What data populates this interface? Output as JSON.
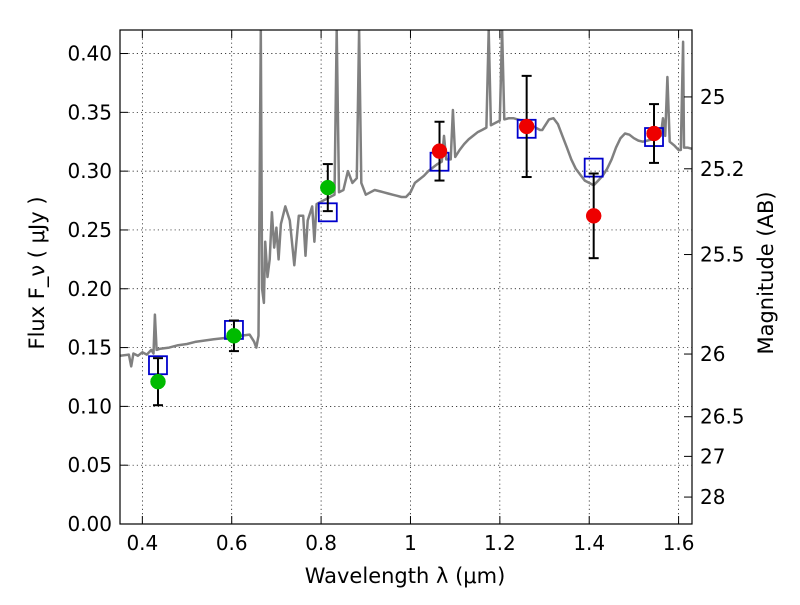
{
  "chart_data": {
    "type": "scatter",
    "title": "",
    "xlabel": "Wavelength  λ (μm)",
    "ylabel": "Flux  F_ν  ( μJy )",
    "y2label": "Magnitude (AB)",
    "xlim": [
      0.35,
      1.63
    ],
    "ylim": [
      0,
      0.42
    ],
    "xticks": [
      0.4,
      0.6,
      0.8,
      1.0,
      1.2,
      1.4,
      1.6
    ],
    "xtick_labels": [
      "0.4",
      "0.6",
      "0.8",
      "1",
      "1.2",
      "1.4",
      "1.6"
    ],
    "yticks": [
      0.0,
      0.05,
      0.1,
      0.15,
      0.2,
      0.25,
      0.3,
      0.35,
      0.4
    ],
    "ytick_labels": [
      "0.00",
      "0.05",
      "0.10",
      "0.15",
      "0.20",
      "0.25",
      "0.30",
      "0.35",
      "0.40"
    ],
    "y2ticks": [
      {
        "label": "25",
        "flux": 0.3631
      },
      {
        "label": "25.2",
        "flux": 0.302
      },
      {
        "label": "25.5",
        "flux": 0.2291
      },
      {
        "label": "26",
        "flux": 0.1445
      },
      {
        "label": "26.5",
        "flux": 0.0912
      },
      {
        "label": "27",
        "flux": 0.0575
      },
      {
        "label": "28",
        "flux": 0.0229
      }
    ],
    "grid": true,
    "series": [
      {
        "kind": "line",
        "color": "#808080",
        "points": [
          [
            0.35,
            0.143
          ],
          [
            0.37,
            0.144
          ],
          [
            0.375,
            0.134
          ],
          [
            0.38,
            0.145
          ],
          [
            0.39,
            0.143
          ],
          [
            0.4,
            0.146
          ],
          [
            0.41,
            0.144
          ],
          [
            0.42,
            0.148
          ],
          [
            0.425,
            0.145
          ],
          [
            0.428,
            0.178
          ],
          [
            0.432,
            0.148
          ],
          [
            0.44,
            0.149
          ],
          [
            0.46,
            0.15
          ],
          [
            0.48,
            0.152
          ],
          [
            0.5,
            0.153
          ],
          [
            0.52,
            0.155
          ],
          [
            0.54,
            0.156
          ],
          [
            0.56,
            0.157
          ],
          [
            0.58,
            0.158
          ],
          [
            0.6,
            0.159
          ],
          [
            0.62,
            0.16
          ],
          [
            0.64,
            0.161
          ],
          [
            0.65,
            0.155
          ],
          [
            0.655,
            0.15
          ],
          [
            0.66,
            0.16
          ],
          [
            0.665,
            0.42
          ],
          [
            0.668,
            0.2
          ],
          [
            0.672,
            0.188
          ],
          [
            0.675,
            0.24
          ],
          [
            0.68,
            0.21
          ],
          [
            0.685,
            0.225
          ],
          [
            0.69,
            0.265
          ],
          [
            0.695,
            0.235
          ],
          [
            0.7,
            0.252
          ],
          [
            0.705,
            0.225
          ],
          [
            0.71,
            0.255
          ],
          [
            0.72,
            0.27
          ],
          [
            0.73,
            0.258
          ],
          [
            0.74,
            0.22
          ],
          [
            0.75,
            0.262
          ],
          [
            0.76,
            0.262
          ],
          [
            0.765,
            0.228
          ],
          [
            0.77,
            0.258
          ],
          [
            0.78,
            0.27
          ],
          [
            0.785,
            0.24
          ],
          [
            0.79,
            0.272
          ],
          [
            0.8,
            0.274
          ],
          [
            0.81,
            0.276
          ],
          [
            0.82,
            0.278
          ],
          [
            0.83,
            0.28
          ],
          [
            0.835,
            0.42
          ],
          [
            0.84,
            0.282
          ],
          [
            0.85,
            0.284
          ],
          [
            0.86,
            0.3
          ],
          [
            0.87,
            0.29
          ],
          [
            0.88,
            0.294
          ],
          [
            0.885,
            0.42
          ],
          [
            0.89,
            0.29
          ],
          [
            0.9,
            0.28
          ],
          [
            0.91,
            0.282
          ],
          [
            0.92,
            0.284
          ],
          [
            0.93,
            0.283
          ],
          [
            0.94,
            0.282
          ],
          [
            0.95,
            0.281
          ],
          [
            0.96,
            0.28
          ],
          [
            0.97,
            0.279
          ],
          [
            0.98,
            0.278
          ],
          [
            0.99,
            0.278
          ],
          [
            1.0,
            0.282
          ],
          [
            1.01,
            0.29
          ],
          [
            1.02,
            0.293
          ],
          [
            1.03,
            0.296
          ],
          [
            1.04,
            0.3
          ],
          [
            1.05,
            0.303
          ],
          [
            1.06,
            0.306
          ],
          [
            1.07,
            0.308
          ],
          [
            1.075,
            0.33
          ],
          [
            1.08,
            0.31
          ],
          [
            1.09,
            0.31
          ],
          [
            1.095,
            0.352
          ],
          [
            1.1,
            0.312
          ],
          [
            1.11,
            0.318
          ],
          [
            1.12,
            0.323
          ],
          [
            1.13,
            0.327
          ],
          [
            1.14,
            0.33
          ],
          [
            1.15,
            0.333
          ],
          [
            1.16,
            0.335
          ],
          [
            1.17,
            0.337
          ],
          [
            1.175,
            0.42
          ],
          [
            1.18,
            0.339
          ],
          [
            1.19,
            0.341
          ],
          [
            1.2,
            0.343
          ],
          [
            1.205,
            0.42
          ],
          [
            1.21,
            0.344
          ],
          [
            1.22,
            0.345
          ],
          [
            1.23,
            0.345
          ],
          [
            1.24,
            0.344
          ],
          [
            1.25,
            0.343
          ],
          [
            1.26,
            0.341
          ],
          [
            1.27,
            0.339
          ],
          [
            1.28,
            0.337
          ],
          [
            1.29,
            0.335
          ],
          [
            1.295,
            0.335
          ],
          [
            1.3,
            0.338
          ],
          [
            1.31,
            0.344
          ],
          [
            1.32,
            0.345
          ],
          [
            1.33,
            0.34
          ],
          [
            1.34,
            0.33
          ],
          [
            1.35,
            0.32
          ],
          [
            1.36,
            0.31
          ],
          [
            1.37,
            0.302
          ],
          [
            1.38,
            0.297
          ],
          [
            1.39,
            0.292
          ],
          [
            1.4,
            0.29
          ],
          [
            1.41,
            0.288
          ],
          [
            1.42,
            0.292
          ],
          [
            1.43,
            0.296
          ],
          [
            1.44,
            0.302
          ],
          [
            1.45,
            0.31
          ],
          [
            1.46,
            0.32
          ],
          [
            1.47,
            0.328
          ],
          [
            1.48,
            0.332
          ],
          [
            1.49,
            0.331
          ],
          [
            1.5,
            0.328
          ],
          [
            1.51,
            0.326
          ],
          [
            1.52,
            0.325
          ],
          [
            1.53,
            0.326
          ],
          [
            1.54,
            0.327
          ],
          [
            1.55,
            0.328
          ],
          [
            1.56,
            0.33
          ],
          [
            1.565,
            0.345
          ],
          [
            1.57,
            0.33
          ],
          [
            1.575,
            0.38
          ],
          [
            1.58,
            0.325
          ],
          [
            1.59,
            0.322
          ],
          [
            1.6,
            0.318
          ],
          [
            1.605,
            0.318
          ],
          [
            1.61,
            0.41
          ],
          [
            1.612,
            0.32
          ],
          [
            1.62,
            0.32
          ],
          [
            1.63,
            0.319
          ]
        ]
      },
      {
        "kind": "squares",
        "color": "#0000cc",
        "points": [
          [
            0.435,
            0.135
          ],
          [
            0.605,
            0.165
          ],
          [
            0.815,
            0.265
          ],
          [
            1.065,
            0.308
          ],
          [
            1.26,
            0.336
          ],
          [
            1.41,
            0.303
          ],
          [
            1.545,
            0.329
          ]
        ]
      },
      {
        "kind": "points",
        "color": "#00bb00",
        "points": [
          {
            "x": 0.435,
            "y": 0.121,
            "err": 0.02
          },
          {
            "x": 0.605,
            "y": 0.16,
            "err": 0.013
          },
          {
            "x": 0.815,
            "y": 0.286,
            "err": 0.02
          }
        ]
      },
      {
        "kind": "points",
        "color": "#ee0000",
        "points": [
          {
            "x": 1.065,
            "y": 0.317,
            "err": 0.025
          },
          {
            "x": 1.26,
            "y": 0.338,
            "err": 0.043
          },
          {
            "x": 1.41,
            "y": 0.262,
            "err": 0.036
          },
          {
            "x": 1.545,
            "y": 0.332,
            "err": 0.025
          }
        ]
      }
    ]
  }
}
